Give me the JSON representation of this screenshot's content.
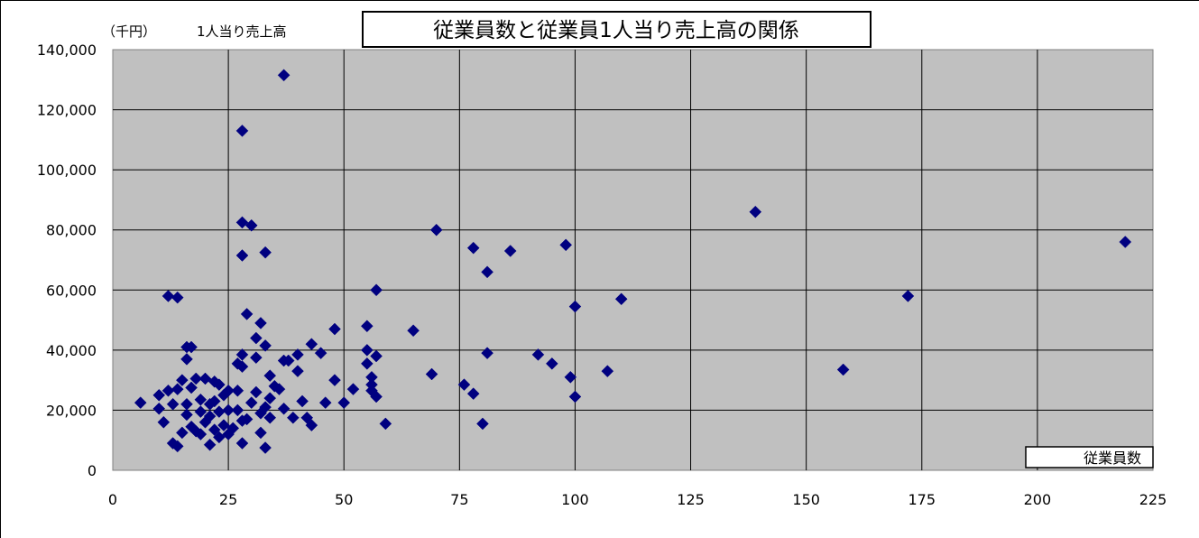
{
  "chart_data": {
    "type": "scatter",
    "title": "従業員数と従業員1人当り売上高の関係",
    "y_unit": "（千円）",
    "ylabel": "1人当り売上高",
    "xlabel": "",
    "legend": "従業員数",
    "legend_position": "bottom-right",
    "xlim": [
      0,
      225
    ],
    "ylim": [
      0,
      140000
    ],
    "x_ticks": [
      "0",
      "25",
      "50",
      "75",
      "100",
      "125",
      "150",
      "175",
      "200",
      "225"
    ],
    "y_ticks": [
      "0",
      "20,000",
      "40,000",
      "60,000",
      "80,000",
      "100,000",
      "120,000",
      "140,000"
    ],
    "grid": true,
    "colors": {
      "plot_bg": "#c0c0c0",
      "marker": "#000080",
      "grid": "#000000"
    },
    "points": [
      [
        37,
        131500
      ],
      [
        28,
        113000
      ],
      [
        139,
        86000
      ],
      [
        28,
        82500
      ],
      [
        30,
        81500
      ],
      [
        70,
        80000
      ],
      [
        219,
        76000
      ],
      [
        98,
        75000
      ],
      [
        78,
        74000
      ],
      [
        86,
        73000
      ],
      [
        33,
        72500
      ],
      [
        28,
        71500
      ],
      [
        81,
        66000
      ],
      [
        57,
        60000
      ],
      [
        12,
        58000
      ],
      [
        14,
        57500
      ],
      [
        172,
        58000
      ],
      [
        110,
        57000
      ],
      [
        100,
        54500
      ],
      [
        29,
        52000
      ],
      [
        32,
        49000
      ],
      [
        55,
        48000
      ],
      [
        48,
        47000
      ],
      [
        65,
        46500
      ],
      [
        31,
        44000
      ],
      [
        43,
        42000
      ],
      [
        33,
        41500
      ],
      [
        16,
        41000
      ],
      [
        17,
        41000
      ],
      [
        55,
        40000
      ],
      [
        45,
        39000
      ],
      [
        81,
        39000
      ],
      [
        92,
        38500
      ],
      [
        28,
        38500
      ],
      [
        40,
        38500
      ],
      [
        57,
        38000
      ],
      [
        31,
        37500
      ],
      [
        16,
        37000
      ],
      [
        38,
        36500
      ],
      [
        37,
        36500
      ],
      [
        27,
        35500
      ],
      [
        55,
        35500
      ],
      [
        95,
        35500
      ],
      [
        28,
        34500
      ],
      [
        158,
        33500
      ],
      [
        107,
        33000
      ],
      [
        40,
        33000
      ],
      [
        69,
        32000
      ],
      [
        34,
        31500
      ],
      [
        99,
        31000
      ],
      [
        56,
        31000
      ],
      [
        18,
        30500
      ],
      [
        20,
        30500
      ],
      [
        15,
        30000
      ],
      [
        48,
        30000
      ],
      [
        22,
        29500
      ],
      [
        23,
        28500
      ],
      [
        56,
        28500
      ],
      [
        76,
        28500
      ],
      [
        35,
        28000
      ],
      [
        17,
        27500
      ],
      [
        14,
        27000
      ],
      [
        36,
        27000
      ],
      [
        52,
        27000
      ],
      [
        12,
        26500
      ],
      [
        25,
        26500
      ],
      [
        56,
        26500
      ],
      [
        27,
        26500
      ],
      [
        31,
        26000
      ],
      [
        78,
        25500
      ],
      [
        10,
        25000
      ],
      [
        24,
        25000
      ],
      [
        57,
        24500
      ],
      [
        100,
        24500
      ],
      [
        34,
        24000
      ],
      [
        19,
        23500
      ],
      [
        41,
        23000
      ],
      [
        22,
        23000
      ],
      [
        30,
        22500
      ],
      [
        6,
        22500
      ],
      [
        46,
        22500
      ],
      [
        50,
        22500
      ],
      [
        13,
        22000
      ],
      [
        21,
        22000
      ],
      [
        16,
        22000
      ],
      [
        33,
        21000
      ],
      [
        10,
        20500
      ],
      [
        37,
        20500
      ],
      [
        25,
        20000
      ],
      [
        27,
        20000
      ],
      [
        19,
        19500
      ],
      [
        23,
        19500
      ],
      [
        32,
        19000
      ],
      [
        16,
        18500
      ],
      [
        21,
        18000
      ],
      [
        39,
        17500
      ],
      [
        42,
        17500
      ],
      [
        34,
        17500
      ],
      [
        29,
        17000
      ],
      [
        28,
        16500
      ],
      [
        11,
        16000
      ],
      [
        20,
        16000
      ],
      [
        59,
        15500
      ],
      [
        80,
        15500
      ],
      [
        24,
        15000
      ],
      [
        43,
        15000
      ],
      [
        17,
        14500
      ],
      [
        26,
        14000
      ],
      [
        22,
        13500
      ],
      [
        18,
        13000
      ],
      [
        15,
        12500
      ],
      [
        25,
        12000
      ],
      [
        19,
        12000
      ],
      [
        32,
        12500
      ],
      [
        23,
        11000
      ],
      [
        21,
        8500
      ],
      [
        28,
        9000
      ],
      [
        13,
        9000
      ],
      [
        14,
        8000
      ],
      [
        33,
        7500
      ]
    ]
  }
}
